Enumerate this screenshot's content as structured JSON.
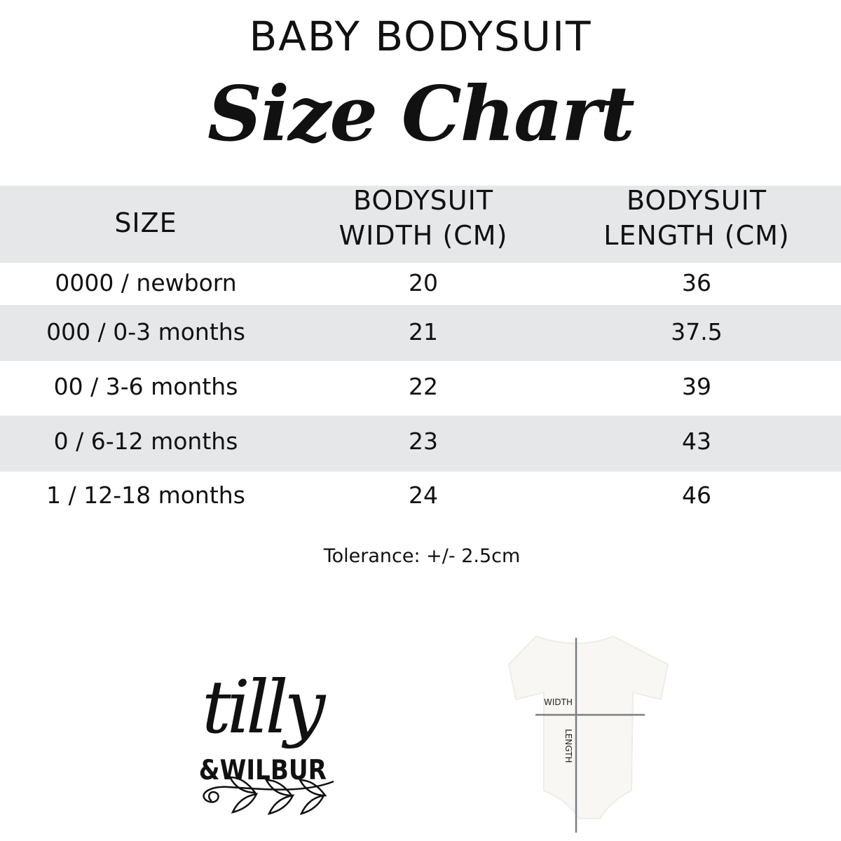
{
  "title": "BABY BODYSUIT",
  "subtitle": "Size Chart",
  "table": {
    "headers": [
      "SIZE",
      "BODYSUIT WIDTH (CM)",
      "BODYSUIT LENGTH (CM)"
    ],
    "header_lines": [
      [
        "SIZE"
      ],
      [
        "BODYSUIT",
        "WIDTH (CM)"
      ],
      [
        "BODYSUIT",
        "LENGTH (CM)"
      ]
    ],
    "rows": [
      [
        "0000 / newborn",
        "20",
        "36"
      ],
      [
        "000 / 0-3 months",
        "21",
        "37.5"
      ],
      [
        "00 / 3-6 months",
        "22",
        "39"
      ],
      [
        "0 / 6-12 months",
        "23",
        "43"
      ],
      [
        "1 / 12-18 months",
        "24",
        "46"
      ]
    ]
  },
  "tolerance": "Tolerance: +/- 2.5cm",
  "logo": {
    "line1": "tilly",
    "line2": "&WILBUR"
  },
  "diagram": {
    "width_label": "WIDTH",
    "length_label": "LENGTH"
  },
  "colors": {
    "band": "#e6e7e9",
    "text": "#111111",
    "measure_line": "#7a7f85"
  }
}
